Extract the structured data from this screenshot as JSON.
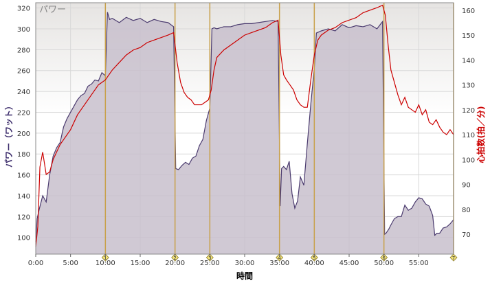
{
  "chart_data": {
    "type": "area",
    "title": "パワー",
    "xlabel": "時間",
    "ylabel_left": "パワー（ワット）",
    "ylabel_right": "心拍数(拍／分)",
    "xlim": [
      0,
      60
    ],
    "ylim_left": [
      84,
      325
    ],
    "ylim_right": [
      62,
      163
    ],
    "x_ticks": [
      "0:00",
      "5:00",
      "10:00",
      "15:00",
      "20:00",
      "25:00",
      "30:00",
      "35:00",
      "40:00",
      "45:00",
      "50:00",
      "55:00"
    ],
    "y_ticks_left": [
      100,
      120,
      140,
      160,
      180,
      200,
      220,
      240,
      260,
      280,
      300,
      320
    ],
    "y_ticks_right": [
      70,
      80,
      90,
      100,
      110,
      120,
      130,
      140,
      150,
      160
    ],
    "grid": true,
    "colors": {
      "power_line": "#4a3a6e",
      "power_fill": "#c8bfcc",
      "heart_rate_line": "#cc0000",
      "lap_marker": "#c8a04a",
      "plot_background_top": "#e6e4e2",
      "plot_background_bottom": "#ffffff"
    },
    "lap_markers": [
      {
        "label": "1",
        "x": 10.0
      },
      {
        "label": "2",
        "x": 20.0
      },
      {
        "label": "3",
        "x": 25.0
      },
      {
        "label": "4",
        "x": 35.0
      },
      {
        "label": "5",
        "x": 40.0
      },
      {
        "label": "6",
        "x": 50.0
      },
      {
        "label": "7",
        "x": 60.0
      }
    ],
    "series": [
      {
        "axis": "left",
        "x": [
          0,
          0.2,
          0.5,
          1,
          1.5,
          2,
          2.5,
          3,
          3.5,
          4,
          4.5,
          5,
          5.5,
          6,
          6.5,
          7,
          7.5,
          8,
          8.5,
          9,
          9.5,
          10,
          10.3,
          10.6,
          11,
          12,
          13,
          14,
          15,
          16,
          17,
          18,
          19,
          19.8,
          20.1,
          20.5,
          21,
          21.5,
          22,
          22.5,
          23,
          23.5,
          24,
          24.5,
          25,
          25.3,
          25.6,
          26,
          27,
          28,
          29,
          30,
          31,
          32,
          33,
          34,
          34.8,
          35.1,
          35.3,
          35.6,
          36,
          36.4,
          36.8,
          37.2,
          37.6,
          38,
          38.5,
          39,
          39.5,
          40,
          40.3,
          41,
          42,
          43,
          44,
          45,
          46,
          47,
          48,
          49,
          49.8,
          50.1,
          50.3,
          50.7,
          51,
          51.5,
          52,
          52.5,
          53,
          53.5,
          54,
          54.5,
          55,
          55.5,
          56,
          56.5,
          57,
          57.3,
          57.6,
          58,
          58.5,
          59,
          59.5,
          60
        ],
        "values": [
          96,
          118,
          127,
          140,
          134,
          160,
          178,
          186,
          191,
          206,
          214,
          220,
          226,
          232,
          236,
          238,
          245,
          247,
          251,
          250,
          258,
          255,
          316,
          309,
          310,
          306,
          311,
          308,
          310,
          306,
          309,
          307,
          306,
          302,
          166,
          165,
          169,
          172,
          170,
          176,
          178,
          188,
          194,
          212,
          224,
          300,
          301,
          300,
          302,
          302,
          304,
          305,
          305,
          306,
          307,
          308,
          307,
          130,
          166,
          168,
          165,
          173,
          142,
          128,
          135,
          158,
          150,
          190,
          228,
          262,
          296,
          298,
          300,
          298,
          304,
          301,
          303,
          302,
          304,
          300,
          307,
          103,
          104,
          108,
          112,
          118,
          120,
          120,
          131,
          126,
          128,
          134,
          138,
          137,
          132,
          130,
          121,
          102,
          104,
          104,
          109,
          110,
          113,
          117
        ]
      },
      {
        "axis": "right",
        "x": [
          0,
          0.3,
          0.6,
          1,
          1.5,
          2,
          2.5,
          3,
          3.5,
          4,
          4.5,
          5,
          5.5,
          6,
          6.5,
          7,
          7.5,
          8,
          8.5,
          9,
          9.5,
          10,
          10.5,
          11,
          12,
          13,
          14,
          15,
          16,
          17,
          18,
          19,
          19.8,
          20.3,
          20.8,
          21.3,
          21.8,
          22.3,
          22.8,
          23.3,
          23.8,
          24.3,
          24.8,
          25.2,
          25.6,
          26,
          27,
          28,
          29,
          30,
          31,
          32,
          33,
          34,
          34.8,
          35.2,
          35.6,
          36,
          36.5,
          37,
          37.5,
          38,
          38.5,
          39,
          39.5,
          40,
          40.5,
          41,
          42,
          43,
          44,
          45,
          46,
          47,
          48,
          49,
          49.8,
          50.2,
          50.6,
          51,
          51.5,
          52,
          52.5,
          53,
          53.5,
          54,
          54.5,
          55,
          55.5,
          56,
          56.5,
          57,
          57.5,
          58,
          58.5,
          59,
          59.5,
          60
        ],
        "values": [
          65,
          73,
          97,
          103,
          94,
          95,
          100,
          103,
          106,
          108,
          110,
          112,
          115,
          118,
          120,
          122,
          124,
          126,
          128,
          130,
          131,
          132,
          134,
          136,
          139,
          142,
          144,
          145,
          147,
          148,
          149,
          150,
          151,
          139,
          131,
          127,
          125,
          124,
          122,
          122,
          122,
          123,
          124,
          128,
          136,
          141,
          144,
          146,
          148,
          150,
          151,
          152,
          153,
          155,
          156,
          142,
          134,
          132,
          130,
          128,
          124,
          122,
          121,
          121,
          132,
          142,
          148,
          150,
          152,
          153,
          155,
          156,
          157,
          159,
          160,
          161,
          162,
          158,
          146,
          136,
          131,
          126,
          122,
          125,
          121,
          120,
          119,
          122,
          118,
          120,
          115,
          114,
          116,
          113,
          111,
          110,
          112,
          110
        ]
      }
    ]
  }
}
